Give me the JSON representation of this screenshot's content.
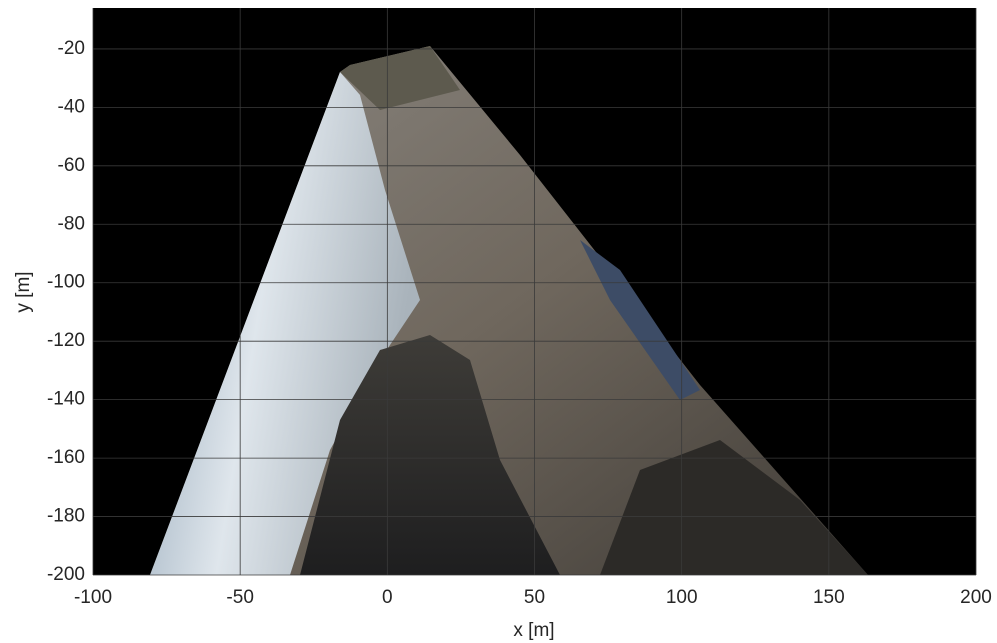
{
  "chart_data": {
    "type": "image",
    "xlabel": "x [m]",
    "ylabel": "y [m]",
    "xlim": [
      -100,
      200
    ],
    "xticks": [
      -100,
      -50,
      0,
      50,
      100,
      150,
      200
    ],
    "ylim": [
      -200,
      -6
    ],
    "yticks": [
      -200,
      -180,
      -160,
      -140,
      -120,
      -100,
      -80,
      -60,
      -40,
      -20
    ],
    "grid": true
  }
}
